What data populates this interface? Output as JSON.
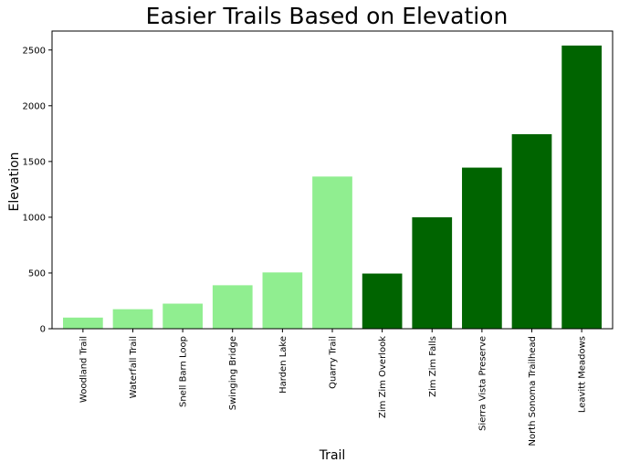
{
  "chart_data": {
    "type": "bar",
    "title": "Easier Trails Based on Elevation",
    "xlabel": "Trail",
    "ylabel": "Elevation",
    "categories": [
      "Woodland Trail",
      "Waterfall Trail",
      "Snell Barn Loop",
      "Swinging Bridge",
      "Harden Lake",
      "Quarry Trail",
      "Zim Zim Overlook",
      "Zim Zim Falls",
      "Sierra Vista Preserve",
      "North Sonoma Trailhead",
      "Leavitt Meadows"
    ],
    "values": [
      100,
      175,
      225,
      390,
      505,
      1365,
      495,
      1000,
      1445,
      1745,
      2540
    ],
    "bar_colors": [
      "#90ee90",
      "#90ee90",
      "#90ee90",
      "#90ee90",
      "#90ee90",
      "#90ee90",
      "#006400",
      "#006400",
      "#006400",
      "#006400",
      "#006400"
    ],
    "y_ticks": [
      0,
      500,
      1000,
      1500,
      2000,
      2500
    ],
    "ylim": [
      0,
      2670
    ],
    "grid": false,
    "legend": false
  }
}
